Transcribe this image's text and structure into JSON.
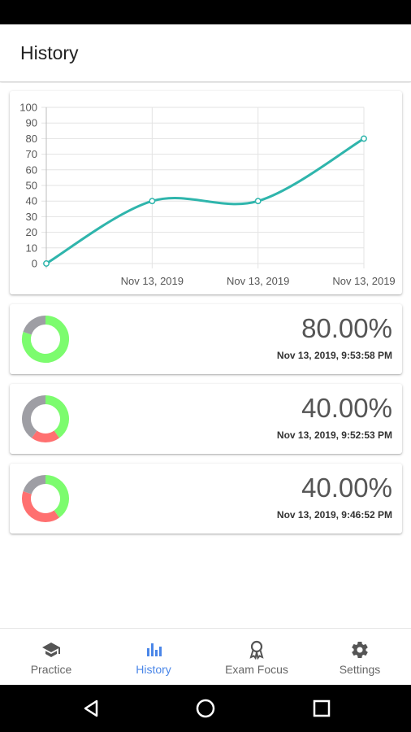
{
  "appbar": {
    "title": "History"
  },
  "chart_data": {
    "type": "line",
    "x": [
      "",
      "Nov 13, 2019",
      "Nov 13, 2019",
      "Nov 13, 2019"
    ],
    "values": [
      0,
      40,
      40,
      80
    ],
    "yticks": [
      "0",
      "10",
      "20",
      "30",
      "40",
      "50",
      "60",
      "70",
      "80",
      "90",
      "100"
    ],
    "ylim": [
      0,
      100
    ],
    "color": "#2fb5ac",
    "grid": true
  },
  "results": [
    {
      "percent": "80.00%",
      "timestamp": "Nov 13, 2019, 9:53:58 PM",
      "correct": 0.8,
      "incorrect": 0.0,
      "unanswered": 0.2
    },
    {
      "percent": "40.00%",
      "timestamp": "Nov 13, 2019, 9:52:53 PM",
      "correct": 0.4,
      "incorrect": 0.2,
      "unanswered": 0.4
    },
    {
      "percent": "40.00%",
      "timestamp": "Nov 13, 2019, 9:46:52 PM",
      "correct": 0.4,
      "incorrect": 0.4,
      "unanswered": 0.2
    }
  ],
  "colors": {
    "correct": "#7cfc6e",
    "incorrect": "#ff7070",
    "unanswered": "#9e9ea4",
    "active": "#4a86e8"
  },
  "nav": {
    "practice": {
      "label": "Practice",
      "icon": "graduation-cap-icon"
    },
    "history": {
      "label": "History",
      "icon": "bar-chart-icon"
    },
    "exam_focus": {
      "label": "Exam Focus",
      "icon": "award-icon"
    },
    "settings": {
      "label": "Settings",
      "icon": "gear-icon"
    }
  }
}
